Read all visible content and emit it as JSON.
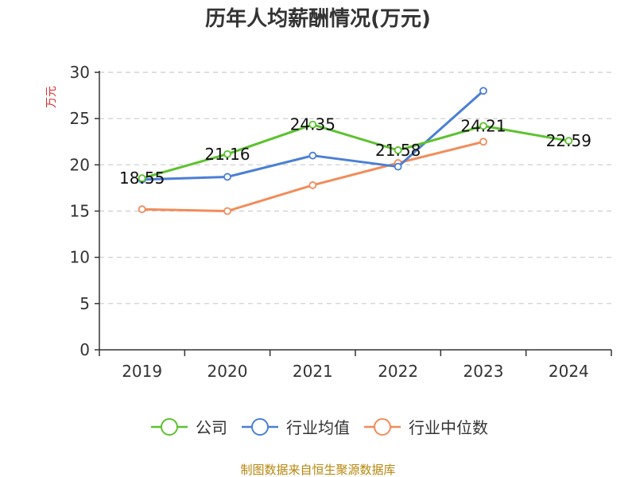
{
  "chart_data": {
    "type": "line",
    "title": "历年人均薪酬情况(万元)",
    "ylabel": "万元",
    "xlabel": "",
    "ylim": [
      0,
      30
    ],
    "yticks": [
      0,
      5,
      10,
      15,
      20,
      25,
      30
    ],
    "categories": [
      "2019",
      "2020",
      "2021",
      "2022",
      "2023",
      "2024"
    ],
    "grid": true,
    "legend_position": "bottom",
    "series": [
      {
        "name": "公司",
        "color": "#5cc22e",
        "values": [
          18.55,
          21.16,
          24.35,
          21.58,
          24.21,
          22.59
        ],
        "labels": [
          "18.55",
          "21.16",
          "24.35",
          "21.58",
          "24.21",
          "22.59"
        ]
      },
      {
        "name": "行业均值",
        "color": "#4a7fd6",
        "values": [
          18.4,
          18.7,
          21.0,
          19.8,
          28.0,
          null
        ]
      },
      {
        "name": "行业中位数",
        "color": "#f28c5a",
        "values": [
          15.2,
          15.0,
          17.8,
          20.2,
          22.5,
          null
        ]
      }
    ]
  },
  "footer": {
    "source": "制图数据来自恒生聚源数据库"
  }
}
